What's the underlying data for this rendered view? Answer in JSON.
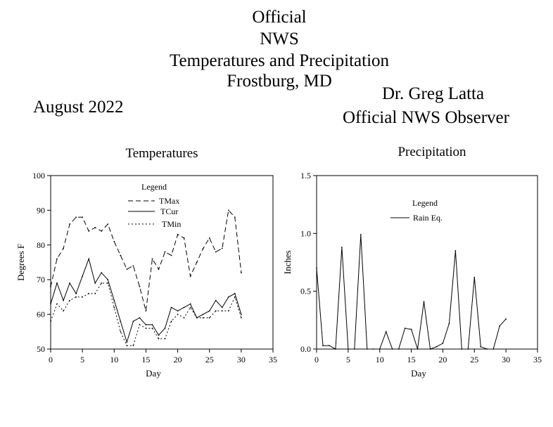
{
  "header": {
    "title_lines": [
      "Official",
      "NWS",
      "Temperatures and Precipitation",
      "Frostburg, MD"
    ],
    "month": "August 2022",
    "observer_name": "Dr. Greg Latta",
    "observer_title": "Official NWS Observer"
  },
  "chart_data": [
    {
      "type": "line",
      "title": "Temperatures",
      "xlabel": "Day",
      "ylabel": "Degrees F",
      "xlim": [
        0,
        35
      ],
      "ylim": [
        50,
        100
      ],
      "xticks": [
        0,
        5,
        10,
        15,
        20,
        25,
        30,
        35
      ],
      "yticks": [
        50,
        60,
        70,
        80,
        90,
        100
      ],
      "legend": {
        "title": "Legend",
        "placement": "top-center"
      },
      "series": [
        {
          "name": "TMax",
          "style": "dashed",
          "x": [
            0,
            1,
            2,
            3,
            4,
            5,
            6,
            7,
            8,
            9,
            10,
            11,
            12,
            13,
            14,
            15,
            16,
            17,
            18,
            19,
            20,
            21,
            22,
            23,
            24,
            25,
            26,
            27,
            28,
            29,
            30
          ],
          "y": [
            68,
            76,
            79,
            86,
            88,
            88,
            84,
            85,
            84,
            86,
            81,
            77,
            73,
            74,
            68,
            61,
            76,
            73,
            78,
            77,
            83,
            82,
            71,
            75,
            79,
            82,
            78,
            79,
            90,
            88,
            72
          ]
        },
        {
          "name": "TCur",
          "style": "solid",
          "x": [
            0,
            1,
            2,
            3,
            4,
            5,
            6,
            7,
            8,
            9,
            10,
            11,
            12,
            13,
            14,
            15,
            16,
            17,
            18,
            19,
            20,
            21,
            22,
            23,
            24,
            25,
            26,
            27,
            28,
            29,
            30
          ],
          "y": [
            63,
            69,
            64,
            69,
            66,
            71,
            76,
            69,
            72,
            70,
            64,
            58,
            52,
            58,
            59,
            57,
            57,
            54,
            56,
            62,
            61,
            62,
            63,
            59,
            60,
            61,
            64,
            62,
            65,
            66,
            60
          ]
        },
        {
          "name": "TMin",
          "style": "dotted",
          "x": [
            0,
            1,
            2,
            3,
            4,
            5,
            6,
            7,
            8,
            9,
            10,
            11,
            12,
            13,
            14,
            15,
            16,
            17,
            18,
            19,
            20,
            21,
            22,
            23,
            24,
            25,
            26,
            27,
            28,
            29,
            30
          ],
          "y": [
            58,
            63,
            61,
            64,
            65,
            65,
            66,
            66,
            69,
            69,
            62,
            55,
            51,
            51,
            57,
            56,
            56,
            53,
            53,
            58,
            60,
            59,
            62,
            59,
            59,
            59,
            61,
            61,
            61,
            65,
            59
          ]
        }
      ]
    },
    {
      "type": "line",
      "title": "Precipitation",
      "xlabel": "Day",
      "ylabel": "Inches",
      "xlim": [
        0,
        35
      ],
      "ylim": [
        0,
        1.5
      ],
      "xticks": [
        0,
        5,
        10,
        15,
        20,
        25,
        30,
        35
      ],
      "yticks": [
        0.0,
        0.5,
        1.0,
        1.5
      ],
      "ytick_labels": [
        "0.0",
        "0.5",
        "1.0",
        "1.5"
      ],
      "legend": {
        "title": "Legend",
        "placement": "top-center"
      },
      "series": [
        {
          "name": "Rain Eq.",
          "style": "solid",
          "x": [
            0,
            1,
            2,
            3,
            4,
            5,
            6,
            7,
            8,
            9,
            10,
            11,
            12,
            13,
            14,
            15,
            16,
            17,
            18,
            19,
            20,
            21,
            22,
            23,
            24,
            25,
            26,
            27,
            28,
            29,
            30
          ],
          "y": [
            0.7,
            0.03,
            0.03,
            0.0,
            0.88,
            0.0,
            0.0,
            0.99,
            0.0,
            0.0,
            0.0,
            0.15,
            0.0,
            0.0,
            0.18,
            0.17,
            0.0,
            0.41,
            0.0,
            0.02,
            0.05,
            0.22,
            0.85,
            0.0,
            0.0,
            0.62,
            0.02,
            0.0,
            0.0,
            0.2,
            0.26
          ]
        }
      ]
    }
  ]
}
